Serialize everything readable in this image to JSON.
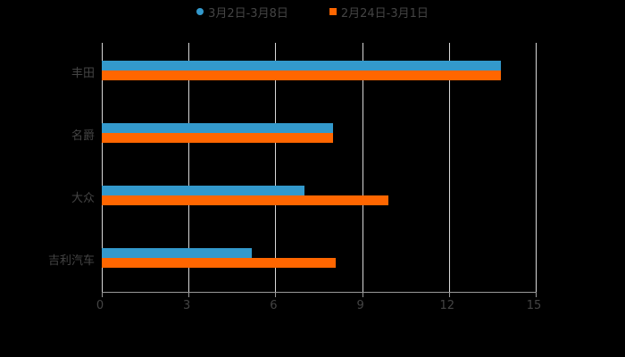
{
  "chart_data": {
    "type": "bar",
    "orientation": "horizontal",
    "title": "",
    "xlabel": "",
    "ylabel": "",
    "categories": [
      "丰田",
      "名爵",
      "大众",
      "吉利汽车"
    ],
    "series": [
      {
        "name": "3月2日-3月8日",
        "color": "#3399cc",
        "marker": "circle",
        "values": [
          13.8,
          8.0,
          7.0,
          5.2
        ]
      },
      {
        "name": "2月24日-3月1日",
        "color": "#ff6600",
        "marker": "square",
        "values": [
          13.8,
          8.0,
          9.9,
          8.1
        ]
      }
    ],
    "xlim": [
      0,
      15
    ],
    "xticks": [
      "0",
      "3",
      "6",
      "9",
      "12",
      "15"
    ],
    "grid": true,
    "legend_position": "top"
  },
  "legend": {
    "items": [
      {
        "label": "3月2日-3月8日",
        "color": "#3399cc"
      },
      {
        "label": "2月24日-3月1日",
        "color": "#ff6600"
      }
    ]
  },
  "axis": {
    "ticks": [
      "0",
      "3",
      "6",
      "9",
      "12",
      "15"
    ]
  },
  "categories": [
    "丰田",
    "名爵",
    "大众",
    "吉利汽车"
  ]
}
